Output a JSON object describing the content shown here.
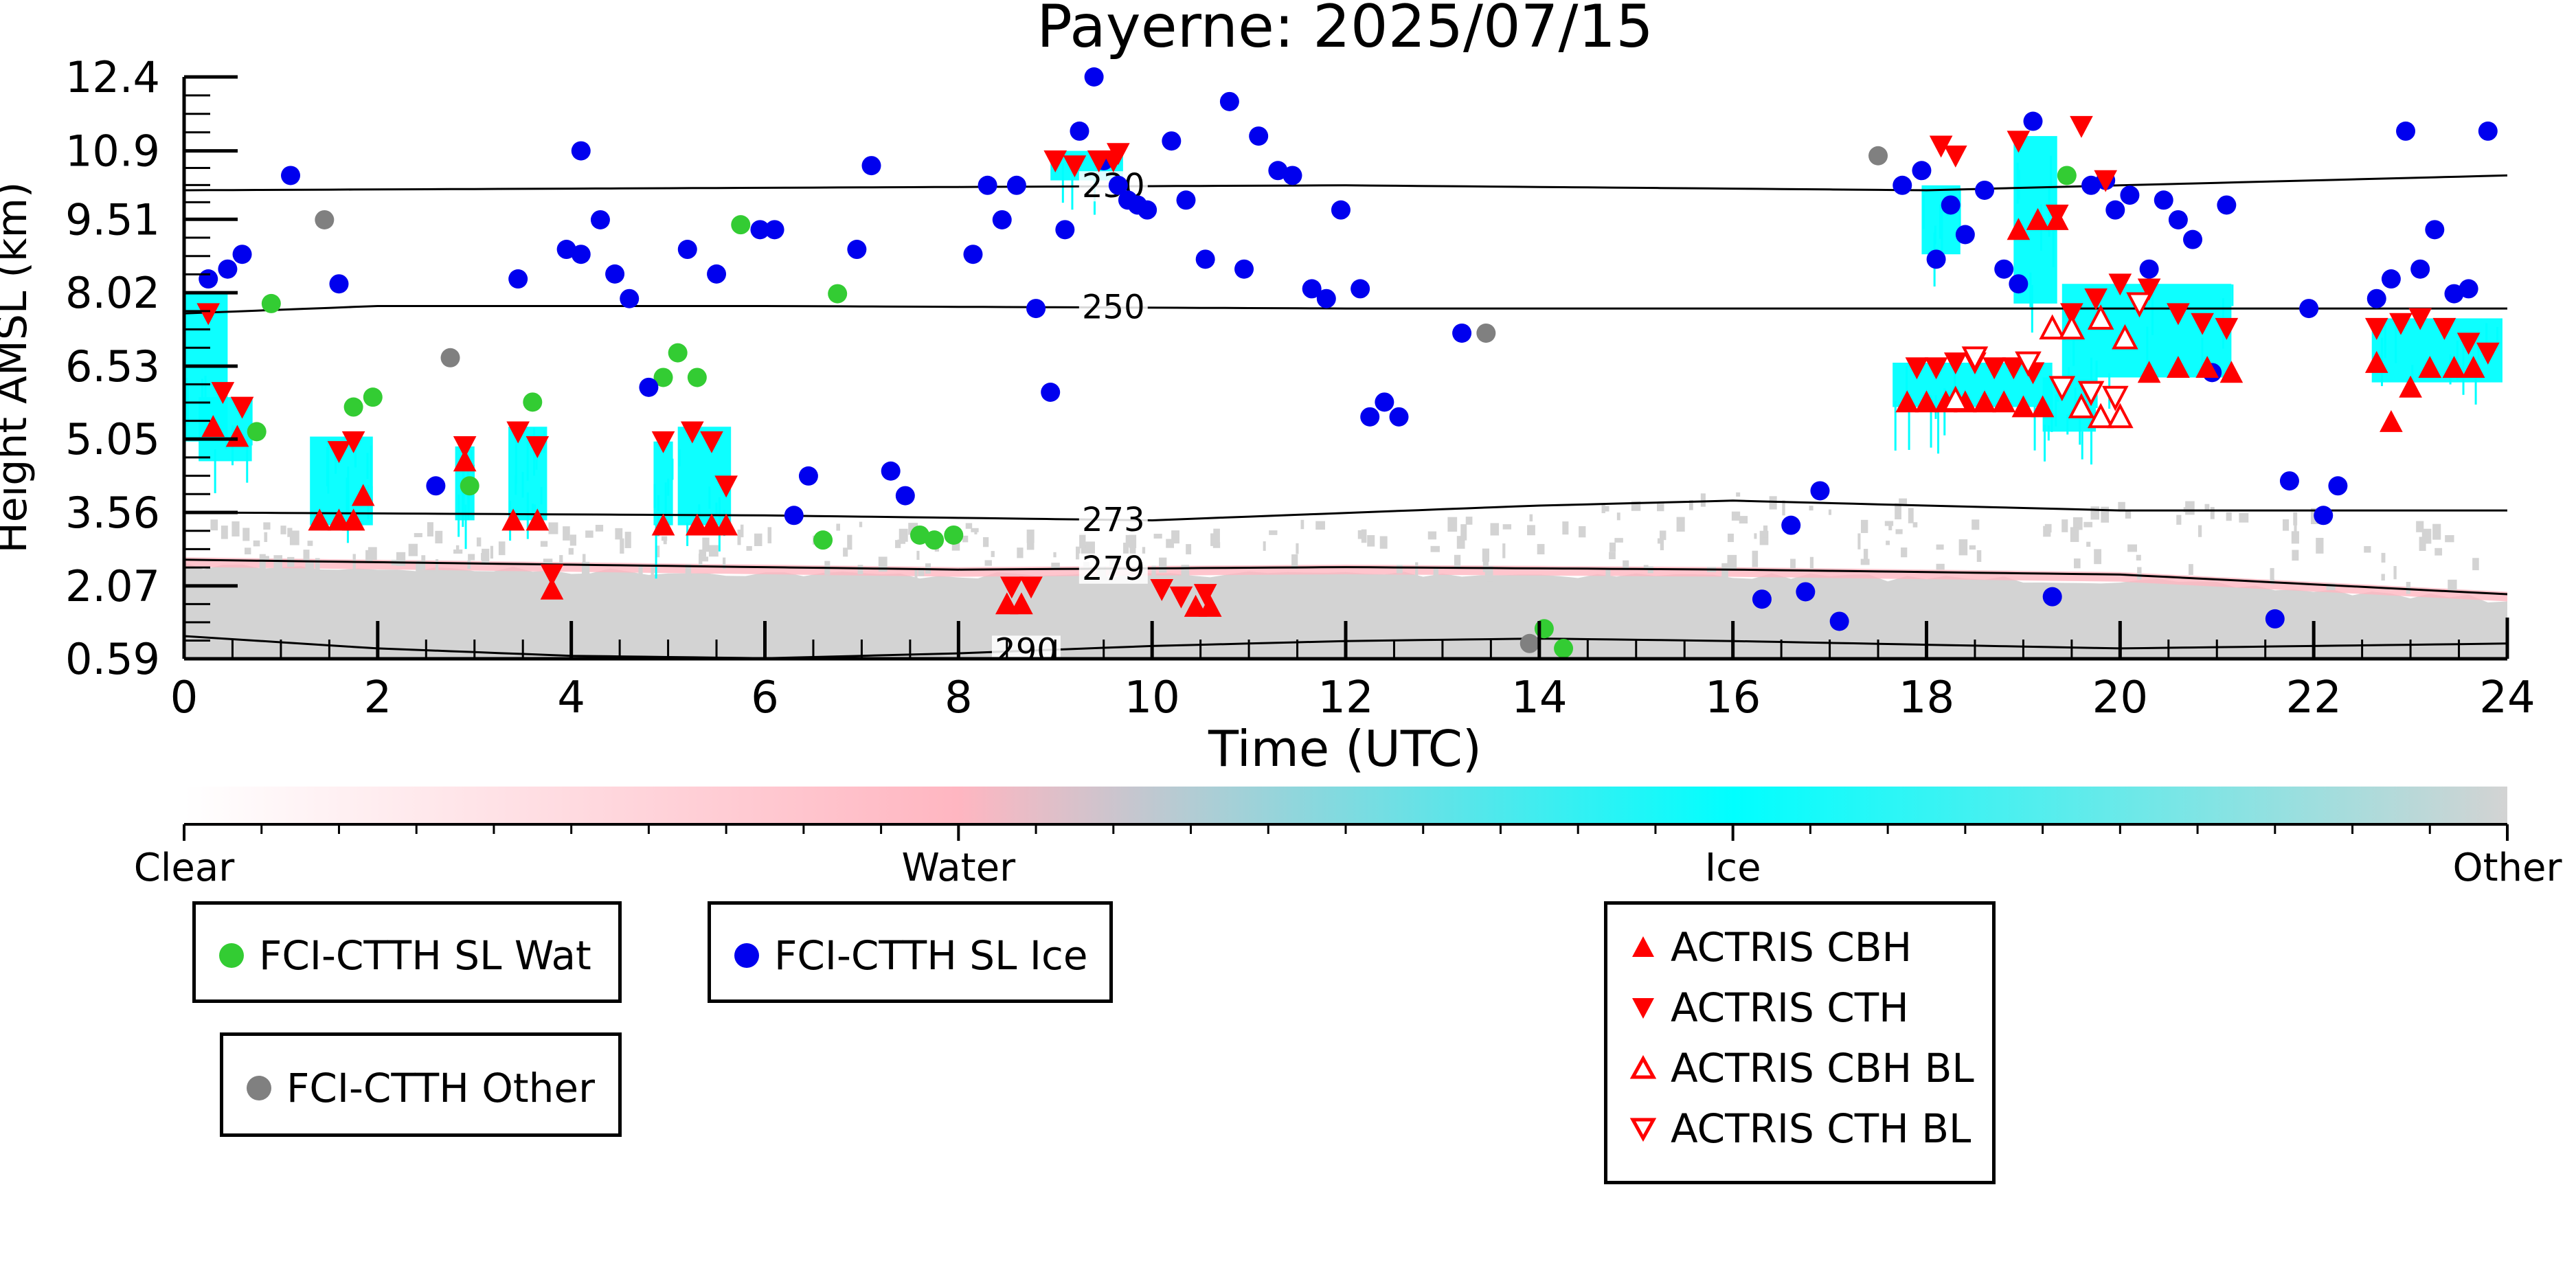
{
  "chart_data": {
    "type": "scatter",
    "title": "Payerne: 2025/07/15",
    "xlabel": "Time (UTC)",
    "ylabel": "Height AMSL (km)",
    "xlim": [
      0,
      24
    ],
    "ylim": [
      0.59,
      12.4
    ],
    "x_ticks": [
      0,
      2,
      4,
      6,
      8,
      10,
      12,
      14,
      16,
      18,
      20,
      22,
      24
    ],
    "y_ticks": [
      "0.59",
      "2.07",
      "3.56",
      "5.05",
      "6.53",
      "8.02",
      "9.51",
      "10.9",
      "12.4"
    ],
    "colorbar": {
      "labels": [
        "Clear",
        "Water",
        "Ice",
        "Other"
      ],
      "colors": [
        "#ffffff",
        "#ffb6c1",
        "#00ffff",
        "#d3d3d3"
      ]
    },
    "contours": [
      {
        "label": "230",
        "x": [
          0,
          6,
          12,
          18,
          24
        ],
        "y": [
          10.1,
          10.15,
          10.2,
          10.1,
          10.4
        ]
      },
      {
        "label": "250",
        "x": [
          0,
          2,
          6,
          12,
          18,
          24
        ],
        "y": [
          7.6,
          7.75,
          7.75,
          7.7,
          7.7,
          7.7
        ]
      },
      {
        "label": "273",
        "x": [
          0,
          6,
          10,
          14,
          16,
          20,
          24
        ],
        "y": [
          3.56,
          3.5,
          3.4,
          3.7,
          3.8,
          3.6,
          3.6
        ]
      },
      {
        "label": "279",
        "x": [
          0,
          4,
          8,
          12,
          16,
          20,
          24
        ],
        "y": [
          2.6,
          2.5,
          2.4,
          2.45,
          2.4,
          2.3,
          1.9
        ]
      },
      {
        "label": "290",
        "x": [
          0,
          2,
          4,
          6,
          8,
          10,
          12,
          14,
          16,
          20,
          24
        ],
        "y": [
          1.05,
          0.8,
          0.65,
          0.6,
          0.7,
          0.85,
          0.95,
          1.0,
          0.95,
          0.8,
          0.9
        ]
      }
    ],
    "series": [
      {
        "name": "FCI-CTTH SL Wat",
        "marker": "circle",
        "color": "#33cc33",
        "points": [
          [
            0.75,
            5.2
          ],
          [
            0.9,
            7.8
          ],
          [
            1.75,
            5.7
          ],
          [
            1.95,
            5.9
          ],
          [
            2.95,
            4.1
          ],
          [
            3.6,
            5.8
          ],
          [
            4.95,
            6.3
          ],
          [
            5.1,
            6.8
          ],
          [
            5.3,
            6.3
          ],
          [
            5.75,
            9.4
          ],
          [
            6.6,
            3.0
          ],
          [
            6.75,
            8.0
          ],
          [
            7.6,
            3.1
          ],
          [
            7.75,
            3.0
          ],
          [
            7.95,
            3.1
          ],
          [
            14.05,
            1.2
          ],
          [
            14.25,
            0.8
          ],
          [
            19.45,
            10.4
          ]
        ]
      },
      {
        "name": "FCI-CTTH SL Ice",
        "marker": "circle",
        "color": "#0000ee",
        "points": [
          [
            0.25,
            8.3
          ],
          [
            0.45,
            8.5
          ],
          [
            0.6,
            8.8
          ],
          [
            1.1,
            10.4
          ],
          [
            1.6,
            8.2
          ],
          [
            2.6,
            4.1
          ],
          [
            3.45,
            8.3
          ],
          [
            3.95,
            8.9
          ],
          [
            4.1,
            8.8
          ],
          [
            4.1,
            10.9
          ],
          [
            4.3,
            9.5
          ],
          [
            4.45,
            8.4
          ],
          [
            4.6,
            7.9
          ],
          [
            4.8,
            6.1
          ],
          [
            5.2,
            8.9
          ],
          [
            5.5,
            8.4
          ],
          [
            5.95,
            9.3
          ],
          [
            6.1,
            9.3
          ],
          [
            6.3,
            3.5
          ],
          [
            6.45,
            4.3
          ],
          [
            6.95,
            8.9
          ],
          [
            7.1,
            10.6
          ],
          [
            7.3,
            4.4
          ],
          [
            7.45,
            3.9
          ],
          [
            8.15,
            8.8
          ],
          [
            8.3,
            10.2
          ],
          [
            8.45,
            9.5
          ],
          [
            8.6,
            10.2
          ],
          [
            8.8,
            7.7
          ],
          [
            8.95,
            6.0
          ],
          [
            9.1,
            9.3
          ],
          [
            9.25,
            11.3
          ],
          [
            9.4,
            12.4
          ],
          [
            9.5,
            10.7
          ],
          [
            9.65,
            10.2
          ],
          [
            9.75,
            9.9
          ],
          [
            9.85,
            9.8
          ],
          [
            9.95,
            9.7
          ],
          [
            10.2,
            11.1
          ],
          [
            10.35,
            9.9
          ],
          [
            10.55,
            8.7
          ],
          [
            10.8,
            11.9
          ],
          [
            10.95,
            8.5
          ],
          [
            11.1,
            11.2
          ],
          [
            11.3,
            10.5
          ],
          [
            11.45,
            10.4
          ],
          [
            11.65,
            8.1
          ],
          [
            11.8,
            7.9
          ],
          [
            11.95,
            9.7
          ],
          [
            12.15,
            8.1
          ],
          [
            12.25,
            5.5
          ],
          [
            12.4,
            5.8
          ],
          [
            12.55,
            5.5
          ],
          [
            13.2,
            7.2
          ],
          [
            16.3,
            1.8
          ],
          [
            16.6,
            3.3
          ],
          [
            16.75,
            1.95
          ],
          [
            16.9,
            4.0
          ],
          [
            17.1,
            1.35
          ],
          [
            17.75,
            10.2
          ],
          [
            17.95,
            10.5
          ],
          [
            18.1,
            8.7
          ],
          [
            18.25,
            9.8
          ],
          [
            18.4,
            9.2
          ],
          [
            18.6,
            10.1
          ],
          [
            18.8,
            8.5
          ],
          [
            18.95,
            8.2
          ],
          [
            19.1,
            11.5
          ],
          [
            19.3,
            1.85
          ],
          [
            19.7,
            10.2
          ],
          [
            19.85,
            10.3
          ],
          [
            19.95,
            9.7
          ],
          [
            20.1,
            10.0
          ],
          [
            20.3,
            8.5
          ],
          [
            20.45,
            9.9
          ],
          [
            20.6,
            9.5
          ],
          [
            20.75,
            9.1
          ],
          [
            20.95,
            6.4
          ],
          [
            21.1,
            9.8
          ],
          [
            21.6,
            1.4
          ],
          [
            21.75,
            4.2
          ],
          [
            21.95,
            7.7
          ],
          [
            22.1,
            3.5
          ],
          [
            22.25,
            4.1
          ],
          [
            22.65,
            7.9
          ],
          [
            22.8,
            8.3
          ],
          [
            22.95,
            11.3
          ],
          [
            23.1,
            8.5
          ],
          [
            23.25,
            9.3
          ],
          [
            23.45,
            8.0
          ],
          [
            23.6,
            8.1
          ],
          [
            23.8,
            11.3
          ]
        ]
      },
      {
        "name": "FCI-CTTH Other",
        "marker": "circle",
        "color": "#808080",
        "points": [
          [
            1.45,
            9.5
          ],
          [
            2.75,
            6.7
          ],
          [
            13.45,
            7.2
          ],
          [
            13.9,
            0.9
          ],
          [
            17.5,
            10.8
          ]
        ]
      },
      {
        "name": "ACTRIS CBH",
        "marker": "triangle-up",
        "color": "#ff0000",
        "points": [
          [
            0.3,
            5.3
          ],
          [
            0.55,
            5.1
          ],
          [
            1.4,
            3.4
          ],
          [
            1.6,
            3.4
          ],
          [
            1.75,
            3.4
          ],
          [
            1.85,
            3.9
          ],
          [
            2.9,
            4.6
          ],
          [
            3.4,
            3.4
          ],
          [
            3.65,
            3.4
          ],
          [
            3.8,
            2.0
          ],
          [
            4.95,
            3.3
          ],
          [
            5.3,
            3.3
          ],
          [
            5.45,
            3.3
          ],
          [
            5.6,
            3.3
          ],
          [
            8.5,
            1.7
          ],
          [
            8.65,
            1.7
          ],
          [
            10.45,
            1.65
          ],
          [
            10.6,
            1.65
          ],
          [
            17.8,
            5.8
          ],
          [
            18.0,
            5.8
          ],
          [
            18.2,
            5.8
          ],
          [
            18.4,
            5.8
          ],
          [
            18.6,
            5.8
          ],
          [
            18.8,
            5.8
          ],
          [
            19.0,
            5.7
          ],
          [
            19.2,
            5.7
          ],
          [
            18.95,
            9.3
          ],
          [
            19.15,
            9.5
          ],
          [
            19.35,
            9.5
          ],
          [
            20.3,
            6.4
          ],
          [
            20.6,
            6.5
          ],
          [
            20.9,
            6.5
          ],
          [
            21.15,
            6.4
          ],
          [
            22.65,
            6.6
          ],
          [
            22.8,
            5.4
          ],
          [
            23.0,
            6.1
          ],
          [
            23.2,
            6.5
          ],
          [
            23.45,
            6.5
          ],
          [
            23.65,
            6.5
          ]
        ]
      },
      {
        "name": "ACTRIS CTH",
        "marker": "triangle-down",
        "color": "#ff0000",
        "points": [
          [
            0.25,
            7.6
          ],
          [
            0.4,
            6.0
          ],
          [
            0.6,
            5.7
          ],
          [
            1.6,
            4.8
          ],
          [
            1.75,
            5.0
          ],
          [
            2.9,
            4.9
          ],
          [
            3.45,
            5.2
          ],
          [
            3.65,
            4.9
          ],
          [
            3.8,
            2.3
          ],
          [
            4.95,
            5.0
          ],
          [
            5.25,
            5.2
          ],
          [
            5.45,
            5.0
          ],
          [
            5.6,
            4.1
          ],
          [
            8.55,
            2.05
          ],
          [
            8.75,
            2.05
          ],
          [
            9.0,
            10.7
          ],
          [
            9.2,
            10.6
          ],
          [
            9.45,
            10.7
          ],
          [
            9.6,
            10.7
          ],
          [
            9.65,
            10.85
          ],
          [
            10.1,
            2.0
          ],
          [
            10.3,
            1.85
          ],
          [
            10.55,
            1.9
          ],
          [
            17.9,
            6.5
          ],
          [
            18.1,
            6.5
          ],
          [
            18.3,
            6.6
          ],
          [
            18.5,
            6.6
          ],
          [
            18.7,
            6.5
          ],
          [
            18.9,
            6.5
          ],
          [
            19.1,
            6.4
          ],
          [
            18.15,
            11.0
          ],
          [
            18.3,
            10.8
          ],
          [
            18.95,
            11.1
          ],
          [
            19.6,
            11.4
          ],
          [
            19.35,
            9.6
          ],
          [
            19.85,
            10.3
          ],
          [
            19.5,
            7.6
          ],
          [
            19.75,
            7.9
          ],
          [
            20.0,
            8.2
          ],
          [
            20.3,
            8.1
          ],
          [
            20.6,
            7.6
          ],
          [
            20.85,
            7.4
          ],
          [
            21.1,
            7.3
          ],
          [
            22.65,
            7.3
          ],
          [
            22.9,
            7.4
          ],
          [
            23.1,
            7.5
          ],
          [
            23.35,
            7.3
          ],
          [
            23.6,
            7.0
          ],
          [
            23.8,
            6.8
          ]
        ]
      },
      {
        "name": "ACTRIS CBH BL",
        "marker": "triangle-up-open",
        "color": "#ff0000",
        "points": [
          [
            19.3,
            7.3
          ],
          [
            19.5,
            7.3
          ],
          [
            19.8,
            7.5
          ],
          [
            20.05,
            7.1
          ],
          [
            19.6,
            5.7
          ],
          [
            19.8,
            5.5
          ],
          [
            20.0,
            5.5
          ],
          [
            18.3,
            5.85
          ]
        ]
      },
      {
        "name": "ACTRIS CTH BL",
        "marker": "triangle-down-open",
        "color": "#ff0000",
        "points": [
          [
            19.4,
            6.1
          ],
          [
            19.7,
            6.0
          ],
          [
            19.95,
            5.9
          ],
          [
            20.2,
            7.8
          ],
          [
            18.5,
            6.7
          ],
          [
            19.05,
            6.6
          ]
        ]
      }
    ]
  },
  "legend": {
    "wat_label": "FCI-CTTH SL Wat",
    "ice_label": "FCI-CTTH SL Ice",
    "other_label": "FCI-CTTH Other",
    "cbh_label": "ACTRIS CBH",
    "cth_label": "ACTRIS CTH",
    "cbh_bl_label": "ACTRIS CBH BL",
    "cth_bl_label": "ACTRIS CTH BL"
  }
}
